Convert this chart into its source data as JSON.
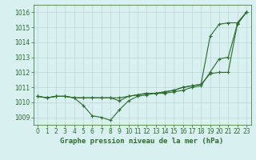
{
  "hours": [
    0,
    1,
    2,
    3,
    4,
    5,
    6,
    7,
    8,
    9,
    10,
    11,
    12,
    13,
    14,
    15,
    16,
    17,
    18,
    19,
    20,
    21,
    22,
    23
  ],
  "line1": [
    1010.4,
    1010.3,
    1010.4,
    1010.4,
    1010.3,
    1009.8,
    1009.1,
    1009.0,
    1008.8,
    1009.5,
    1010.1,
    1010.4,
    1010.5,
    1010.6,
    1010.6,
    1010.7,
    1010.8,
    1011.0,
    1011.1,
    1012.0,
    1012.9,
    1013.0,
    1015.2,
    1016.0
  ],
  "line2": [
    1010.4,
    1010.3,
    1010.4,
    1010.4,
    1010.3,
    1010.3,
    1010.3,
    1010.3,
    1010.3,
    1010.1,
    1010.4,
    1010.5,
    1010.6,
    1010.6,
    1010.7,
    1010.8,
    1011.0,
    1011.1,
    1011.2,
    1011.9,
    1012.0,
    1012.0,
    1015.2,
    1016.0
  ],
  "line3": [
    1010.4,
    1010.3,
    1010.4,
    1010.4,
    1010.3,
    1010.3,
    1010.3,
    1010.3,
    1010.3,
    1010.3,
    1010.4,
    1010.5,
    1010.6,
    1010.6,
    1010.7,
    1010.8,
    1011.0,
    1011.1,
    1011.2,
    1014.4,
    1015.2,
    1015.3,
    1015.3,
    1016.0
  ],
  "line_color": "#2d6a2d",
  "marker": "+",
  "bg_color": "#d8f0f0",
  "grid_color": "#b8d8d8",
  "ylim": [
    1008.5,
    1016.5
  ],
  "xlim": [
    -0.5,
    23.5
  ],
  "yticks": [
    1009,
    1010,
    1011,
    1012,
    1013,
    1014,
    1015,
    1016
  ],
  "xticks": [
    0,
    1,
    2,
    3,
    4,
    5,
    6,
    7,
    8,
    9,
    10,
    11,
    12,
    13,
    14,
    15,
    16,
    17,
    18,
    19,
    20,
    21,
    22,
    23
  ],
  "xlabel": "Graphe pression niveau de la mer (hPa)",
  "label_color": "#2d6a2d",
  "tick_color": "#2d6a2d",
  "fontsize_label": 6.5,
  "fontsize_tick": 5.5
}
